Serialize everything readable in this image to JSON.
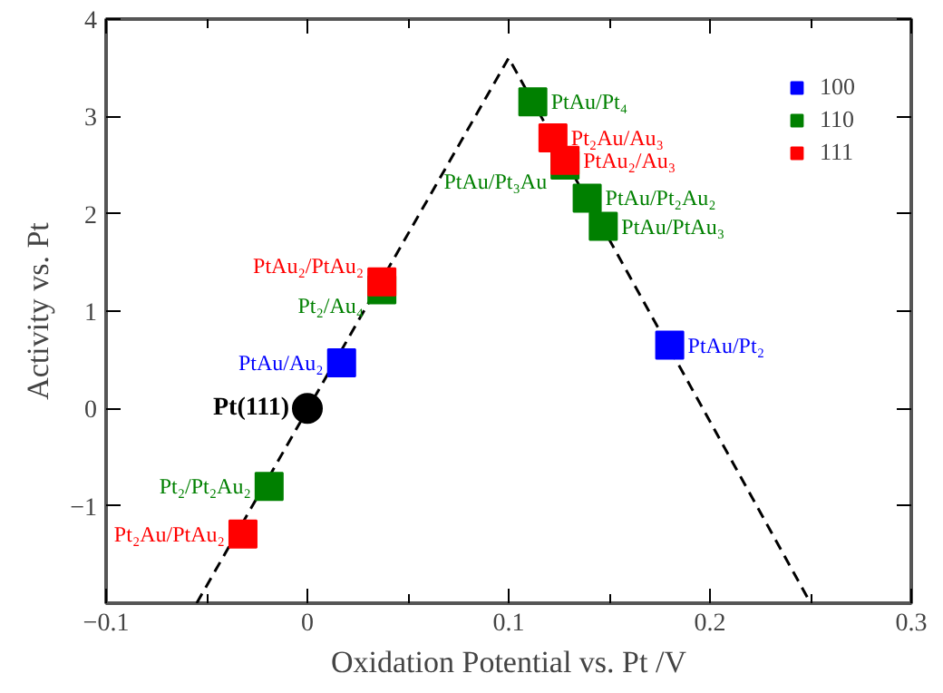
{
  "chart_data": {
    "type": "scatter",
    "xlabel": "Oxidation Potential vs. Pt /V",
    "ylabel": "Activity vs. Pt",
    "xlim": [
      -0.1,
      0.3
    ],
    "ylim": [
      -2,
      4
    ],
    "xticks": [
      -0.1,
      0,
      0.1,
      0.2,
      0.3
    ],
    "yticks": [
      -1,
      0,
      1,
      2,
      3,
      4
    ],
    "grid": false,
    "legend": "top right",
    "series": [
      {
        "type": "line",
        "color": "#000000",
        "line_style": "dashed",
        "marker": "none",
        "x": [
          -0.055,
          0.1,
          0.25
        ],
        "values": [
          -2,
          3.6,
          -2
        ]
      },
      {
        "name": "100",
        "color": "#0000ff",
        "marker": "square",
        "x": [
          0.017,
          0.18
        ],
        "values": [
          0.47,
          0.65
        ],
        "value_labels": [
          "PtAu/Au₂",
          "PtAu/Pt₂"
        ]
      },
      {
        "name": "110",
        "color": "#008000",
        "marker": "square",
        "x": [
          0.112,
          0.128,
          0.139,
          0.147,
          0.037,
          -0.019
        ],
        "values": [
          3.15,
          2.5,
          2.16,
          1.87,
          1.22,
          -0.8
        ],
        "value_labels": [
          "PtAu/Pt₄",
          "PtAu/Pt₃Au",
          "PtAu/Pt₂Au₂",
          "PtAu/PtAu₃",
          "Pt₂/Au₄",
          "Pt₂/Pt₂Au₂"
        ]
      },
      {
        "name": "111",
        "color": "#ff0000",
        "marker": "square",
        "x": [
          0.122,
          0.128,
          0.037,
          -0.032
        ],
        "values": [
          2.78,
          2.55,
          1.3,
          -1.29
        ],
        "value_labels": [
          "Pt₂Au/Au₃",
          "PtAu₂/Au₃",
          "PtAu₂/PtAu₂",
          "Pt₂Au/PtAu₂"
        ]
      },
      {
        "color": "#000000",
        "marker": "circle",
        "x": [
          0
        ],
        "values": [
          0
        ],
        "value_labels": [
          "Pt(111)"
        ]
      }
    ]
  }
}
